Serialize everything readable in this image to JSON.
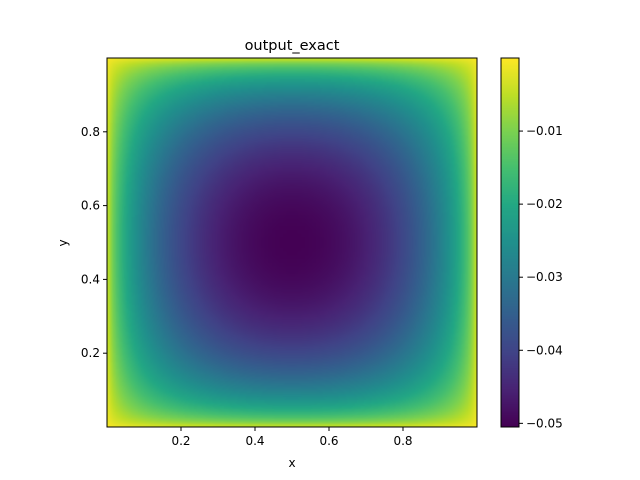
{
  "chart_data": {
    "type": "heatmap",
    "title": "output_exact",
    "xlabel": "x",
    "ylabel": "y",
    "xlim": [
      0.0,
      1.0
    ],
    "ylim": [
      0.0,
      1.0
    ],
    "x_ticks": [
      0.2,
      0.4,
      0.6,
      0.8
    ],
    "x_tick_labels": [
      "0.2",
      "0.4",
      "0.6",
      "0.8"
    ],
    "y_ticks": [
      0.2,
      0.4,
      0.6,
      0.8
    ],
    "y_tick_labels": [
      "0.2",
      "0.4",
      "0.6",
      "0.8"
    ],
    "colormap": "viridis",
    "colorbar": {
      "vmin": -0.0505,
      "vmax": 0.0,
      "ticks": [
        -0.01,
        -0.02,
        -0.03,
        -0.04,
        -0.05
      ],
      "tick_labels": [
        "−0.01",
        "−0.02",
        "−0.03",
        "−0.04",
        "−0.05"
      ]
    },
    "field": {
      "description_min": -0.0505,
      "min_location": [
        0.5,
        0.5
      ],
      "boundary_value": 0.0,
      "resolution": [
        100,
        100
      ]
    },
    "grid": false
  }
}
